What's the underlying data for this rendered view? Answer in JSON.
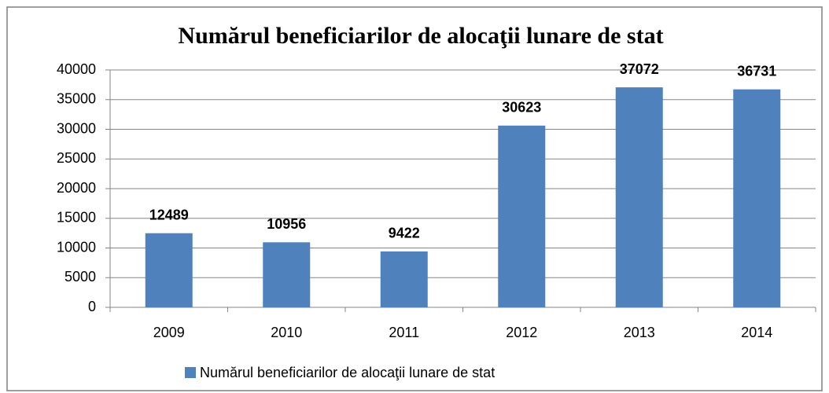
{
  "chart_data": {
    "type": "bar",
    "title": "Numărul beneficiarilor de alocaţii lunare de stat",
    "categories": [
      "2009",
      "2010",
      "2011",
      "2012",
      "2013",
      "2014"
    ],
    "series": [
      {
        "name": "Numărul beneficiarilor de alocaţii lunare de stat",
        "color": "#4f81bd",
        "values": [
          12489,
          10956,
          9422,
          30623,
          37072,
          36731
        ]
      }
    ],
    "ylim": [
      0,
      40000
    ],
    "yticks": [
      0,
      5000,
      10000,
      15000,
      20000,
      25000,
      30000,
      35000,
      40000
    ],
    "grid": true,
    "legend": "bottom"
  }
}
